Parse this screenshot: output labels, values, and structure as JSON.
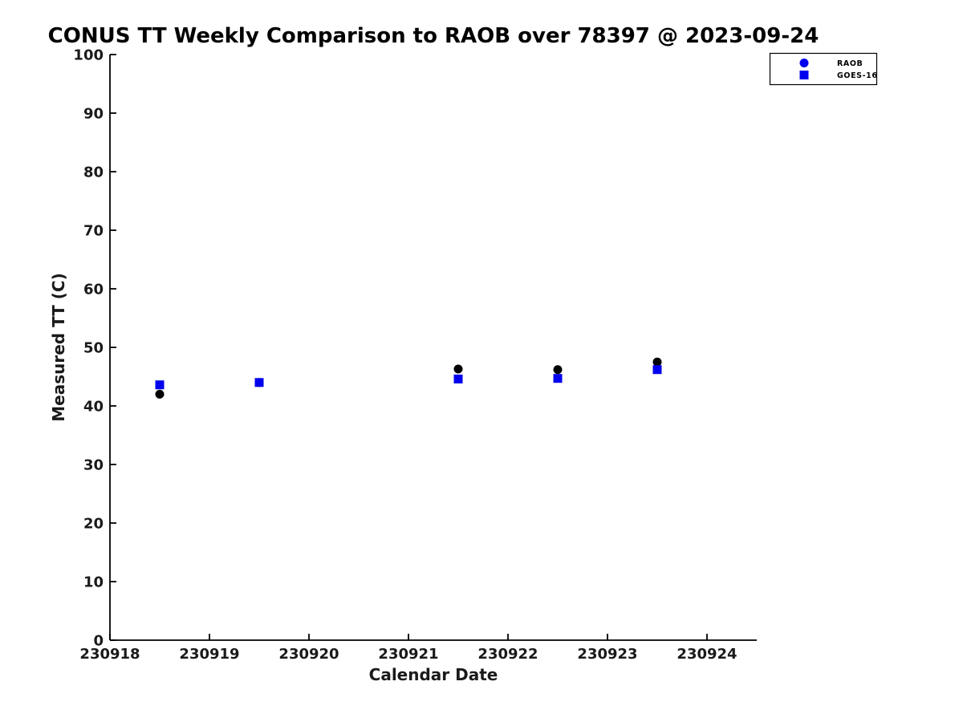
{
  "colors": {
    "background": "#ffffff",
    "axis_line": "#000000",
    "title_text": "#000000",
    "axis_text": "#1a1a1a",
    "raob_plot_marker": "#000000",
    "goes16_plot_marker": "#0000ee",
    "legend_marker_blue": "#0000ee",
    "legend_border": "#000000"
  },
  "legend": {
    "items": [
      {
        "label": "RAOB",
        "marker": "circle-icon"
      },
      {
        "label": "GOES-16",
        "marker": "square-icon"
      }
    ]
  },
  "chart_data": {
    "type": "scatter",
    "title": "CONUS TT Weekly Comparison to RAOB over 78397 @ 2023-09-24",
    "xlabel": "Calendar Date",
    "ylabel": "Measured TT (C)",
    "xlim": [
      230918,
      230924.5
    ],
    "ylim": [
      0,
      100
    ],
    "xticks": [
      230918,
      230919,
      230920,
      230921,
      230922,
      230923,
      230924
    ],
    "yticks": [
      0,
      10,
      20,
      30,
      40,
      50,
      60,
      70,
      80,
      90,
      100
    ],
    "grid": false,
    "legend_position": "top-right-outside",
    "x": [
      230918.5,
      230919.5,
      230921.5,
      230922.5,
      230923.5
    ],
    "series": [
      {
        "name": "RAOB",
        "marker": "circle",
        "plot_color": "#000000",
        "legend_color": "#0000ee",
        "values": [
          42.0,
          44.0,
          46.3,
          46.2,
          47.5
        ]
      },
      {
        "name": "GOES-16",
        "marker": "square",
        "plot_color": "#0000ee",
        "legend_color": "#0000ee",
        "values": [
          43.6,
          44.0,
          44.6,
          44.7,
          46.2
        ]
      }
    ]
  }
}
